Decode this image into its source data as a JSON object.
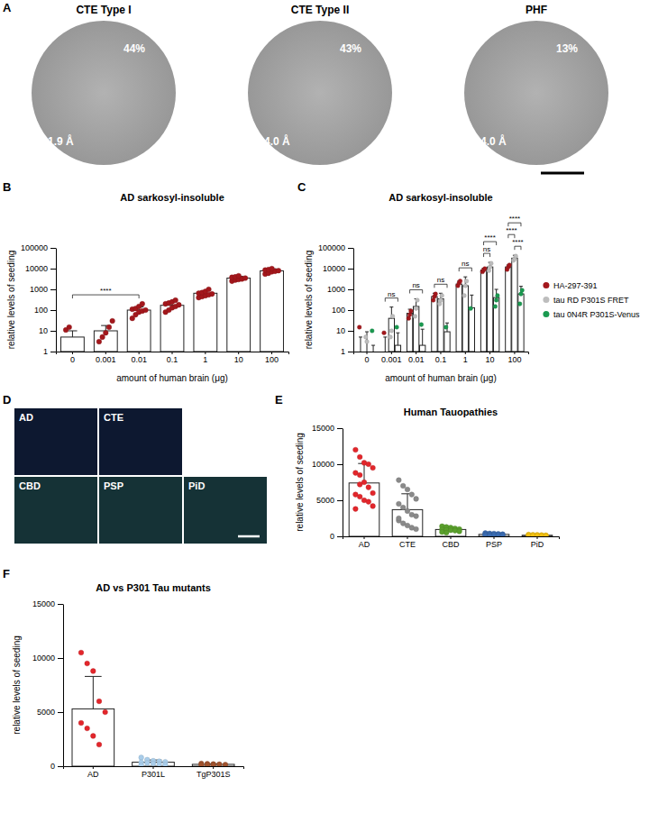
{
  "panel_a": {
    "panel": "A",
    "classes": [
      {
        "title": "CTE Type I",
        "percent": "44%",
        "resolution": "1.9 Å"
      },
      {
        "title": "CTE Type II",
        "percent": "43%",
        "resolution": "4.0 Å"
      },
      {
        "title": "PHF",
        "percent": "13%",
        "resolution": "4.0 Å"
      }
    ]
  },
  "panel_d": {
    "panel": "D",
    "images": [
      {
        "label": "AD"
      },
      {
        "label": "CTE"
      },
      {
        "label": "CBD"
      },
      {
        "label": "PSP"
      },
      {
        "label": "PiD"
      }
    ]
  },
  "chart_data": [
    {
      "panel": "B",
      "type": "bar",
      "title": "AD sarkosyl-insoluble",
      "x_label": "amount of human brain (μg)",
      "y_label": "relative levels of seeding",
      "categories": [
        "0",
        "0.001",
        "0.01",
        "0.1",
        "1",
        "10",
        "100"
      ],
      "log": "y",
      "ylim": [
        1,
        100000
      ],
      "yticks": [
        1,
        10,
        100,
        1000,
        10000,
        100000
      ],
      "series": [
        {
          "color": "#a3171c",
          "values": [
            5,
            10,
            100,
            170,
            650,
            3500,
            7800
          ],
          "errors": [
            5,
            8,
            40,
            80,
            200,
            800,
            2000
          ],
          "points": [
            [
              11,
              15
            ],
            [
              3,
              5,
              8,
              15,
              30
            ],
            [
              40,
              60,
              80,
              90,
              100,
              110,
              120,
              150,
              200
            ],
            [
              80,
              100,
              130,
              150,
              180,
              200,
              220,
              250,
              300
            ],
            [
              400,
              450,
              500,
              550,
              600,
              650,
              700,
              800,
              1000
            ],
            [
              2500,
              2800,
              3000,
              3200,
              3500,
              3800,
              4000,
              4500
            ],
            [
              5500,
              6000,
              7000,
              7500,
              8000,
              8500,
              9000,
              10000
            ]
          ]
        }
      ],
      "annotations": [
        {
          "from": 0,
          "to": 2,
          "text": "****"
        }
      ]
    },
    {
      "panel": "C",
      "type": "bar",
      "title": "AD sarkosyl-insoluble",
      "x_label": "amount of human brain (μg)",
      "y_label": "relative levels of seeding",
      "categories": [
        "0",
        "0.001",
        "0.01",
        "0.1",
        "1",
        "10",
        "100"
      ],
      "log": "y",
      "ylim": [
        1,
        100000
      ],
      "yticks": [
        1,
        10,
        100,
        1000,
        10000,
        100000
      ],
      "legend": "right",
      "series": [
        {
          "name": "HA-297-391",
          "color": "#a3171c",
          "values": [
            1,
            1,
            70,
            450,
            1800,
            8500,
            12000
          ],
          "errors": [
            4,
            4,
            40,
            200,
            700,
            2000,
            3000
          ],
          "points": [
            [
              15
            ],
            [
              8
            ],
            [
              40,
              60,
              90
            ],
            [
              300,
              450,
              600
            ],
            [
              1500,
              2000,
              2500
            ],
            [
              7000,
              8500,
              10000
            ],
            [
              9000,
              12000,
              15000
            ]
          ]
        },
        {
          "name": "tau RD P301S FRET",
          "color": "#bdbdbd",
          "values": [
            1,
            40,
            150,
            350,
            1500,
            12000,
            32000
          ],
          "errors": [
            8,
            100,
            200,
            300,
            2500,
            8000,
            12000
          ],
          "points": [
            [
              5,
              3
            ],
            [
              5,
              10,
              50
            ],
            [
              50,
              120,
              300
            ],
            [
              200,
              300,
              500
            ],
            [
              500,
              1500,
              2500
            ],
            [
              8000,
              12000,
              18000
            ],
            [
              25000,
              30000,
              40000
            ]
          ]
        },
        {
          "name": "tau 0N4R P301S-Venus",
          "color": "#1a9a50",
          "values": [
            1,
            2,
            2,
            9,
            130,
            400,
            600
          ],
          "errors": [
            1,
            6,
            10,
            15,
            400,
            600,
            800
          ],
          "points": [
            [
              10
            ],
            [
              15
            ],
            [
              20
            ],
            [
              15
            ],
            [
              120
            ],
            [
              150,
              300,
              500
            ],
            [
              200,
              600,
              900
            ]
          ]
        }
      ],
      "annotations": [
        {
          "category": 1,
          "from": 0,
          "to": 2,
          "text": "ns"
        },
        {
          "category": 2,
          "from": 0,
          "to": 2,
          "text": "ns"
        },
        {
          "category": 3,
          "from": 0,
          "to": 2,
          "text": "ns"
        },
        {
          "category": 4,
          "from": 0,
          "to": 2,
          "text": "ns"
        },
        {
          "category": 5,
          "from": 0,
          "to": 1,
          "text": "ns"
        },
        {
          "category": 5,
          "from": 0,
          "to": 2,
          "text": "****"
        },
        {
          "category": 6,
          "from": 1,
          "to": 2,
          "text": "****"
        },
        {
          "category": 6,
          "from": 0,
          "to": 1,
          "text": "****"
        },
        {
          "category": 6,
          "from": 0,
          "to": 2,
          "text": "****"
        }
      ]
    },
    {
      "panel": "E",
      "type": "bar",
      "title": "Human Tauopathies",
      "y_label": "relative levels of seeding",
      "categories": [
        "AD",
        "CTE",
        "CBD",
        "PSP",
        "PiD"
      ],
      "ylim": [
        0,
        15000
      ],
      "yticks": [
        0,
        5000,
        10000,
        15000
      ],
      "series": [
        {
          "colors": [
            "#e3262b",
            "#8a8a8a",
            "#5aa02c",
            "#3a6bb0",
            "#f2c012"
          ],
          "values": [
            7400,
            3700,
            950,
            270,
            150
          ],
          "errors": [
            2700,
            2200,
            280,
            100,
            60
          ],
          "points": [
            [
              12000,
              11000,
              10200,
              10000,
              9500,
              8800,
              8500,
              7500,
              6800,
              6000,
              5800,
              5500,
              5000,
              4800,
              4200,
              3800,
              7200
            ],
            [
              7800,
              7000,
              6500,
              5800,
              5200,
              4500,
              4000,
              3500,
              3000,
              2800,
              2200,
              1800,
              1500,
              1200,
              1000,
              2500
            ],
            [
              1400,
              1300,
              1200,
              1100,
              1000,
              950,
              900,
              850,
              800,
              700,
              600,
              500
            ],
            [
              450,
              400,
              380,
              350,
              300,
              280,
              250,
              220,
              200,
              180,
              150,
              120
            ],
            [
              250,
              220,
              200,
              180,
              150,
              130,
              110,
              100,
              90,
              80
            ]
          ]
        }
      ]
    },
    {
      "panel": "F",
      "type": "bar",
      "title": "AD vs P301 Tau mutants",
      "y_label": "relative levels of seeding",
      "categories": [
        "AD",
        "P301L",
        "TgP301S"
      ],
      "ylim": [
        0,
        15000
      ],
      "yticks": [
        0,
        5000,
        10000,
        15000
      ],
      "series": [
        {
          "colors": [
            "#e3262b",
            "#a9cdea",
            "#a0522d"
          ],
          "values": [
            5300,
            370,
            170
          ],
          "errors": [
            3000,
            200,
            50
          ],
          "points": [
            [
              10500,
              9500,
              8800,
              6000,
              5000,
              4000,
              3500,
              2800,
              2000
            ],
            [
              800,
              600,
              500,
              450,
              400,
              350,
              300,
              250,
              200,
              150,
              100
            ],
            [
              250,
              220,
              200,
              180,
              150,
              130,
              120,
              100
            ]
          ]
        }
      ]
    }
  ]
}
